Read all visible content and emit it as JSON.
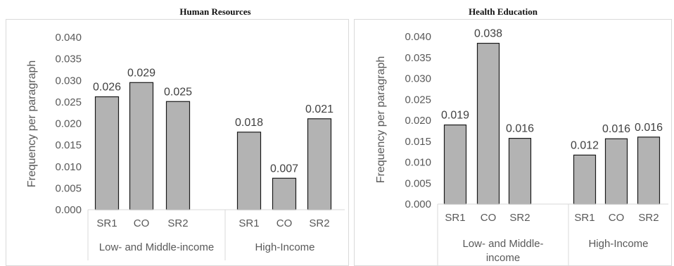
{
  "chart_data": [
    {
      "type": "bar",
      "title": "Human Resources",
      "ylabel": "Frequency per paragraph",
      "ylim": [
        0,
        0.04
      ],
      "yticks": [
        "0.000",
        "0.005",
        "0.010",
        "0.015",
        "0.020",
        "0.025",
        "0.030",
        "0.035",
        "0.040"
      ],
      "groups": [
        {
          "label": "Low- and Middle-income",
          "categories": [
            "SR1",
            "CO",
            "SR2"
          ],
          "values": [
            0.0262,
            0.0295,
            0.0251
          ],
          "labels": [
            "0.026",
            "0.029",
            "0.025"
          ]
        },
        {
          "label": "High-Income",
          "categories": [
            "SR1",
            "CO",
            "SR2"
          ],
          "values": [
            0.018,
            0.0073,
            0.0211
          ],
          "labels": [
            "0.018",
            "0.007",
            "0.021"
          ]
        }
      ],
      "bar_color": "#b3b3b3",
      "bar_edge_color": "#1a1a1a",
      "grid": false
    },
    {
      "type": "bar",
      "title": "Health Education",
      "ylabel": "Frequency per paragraph",
      "ylim": [
        0,
        0.04
      ],
      "yticks": [
        "0.000",
        "0.005",
        "0.010",
        "0.015",
        "0.020",
        "0.025",
        "0.030",
        "0.035",
        "0.040"
      ],
      "groups": [
        {
          "label": "Low- and Middle-income",
          "categories": [
            "SR1",
            "CO",
            "SR2"
          ],
          "values": [
            0.0189,
            0.0384,
            0.0157
          ],
          "labels": [
            "0.019",
            "0.038",
            "0.016"
          ]
        },
        {
          "label": "High-Income",
          "categories": [
            "SR1",
            "CO",
            "SR2"
          ],
          "values": [
            0.0117,
            0.0156,
            0.016
          ],
          "labels": [
            "0.012",
            "0.016",
            "0.016"
          ]
        }
      ],
      "bar_color": "#b3b3b3",
      "bar_edge_color": "#1a1a1a",
      "grid": false
    }
  ]
}
